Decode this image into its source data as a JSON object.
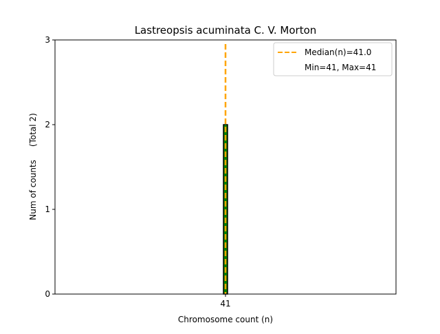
{
  "chart_data": {
    "type": "bar",
    "title": "Lastreopsis acuminata C. V. Morton",
    "xlabel": "Chromosome count (n)",
    "ylabel": "Num of counts     (Total 2)",
    "categories": [
      "41"
    ],
    "x": [
      41
    ],
    "values": [
      2
    ],
    "ylim": [
      0,
      3
    ],
    "yticks": [
      "0",
      "1",
      "2",
      "3"
    ],
    "xticks": [
      "41"
    ],
    "median_line": {
      "value": 41.0,
      "label": "Median(n)=41.0",
      "color": "#ffa500"
    },
    "minmax_label": "Min=41, Max=41",
    "legend_position": "top-right",
    "bar_color": "#008000",
    "bar_edge_color": "#000000",
    "grid": false
  }
}
